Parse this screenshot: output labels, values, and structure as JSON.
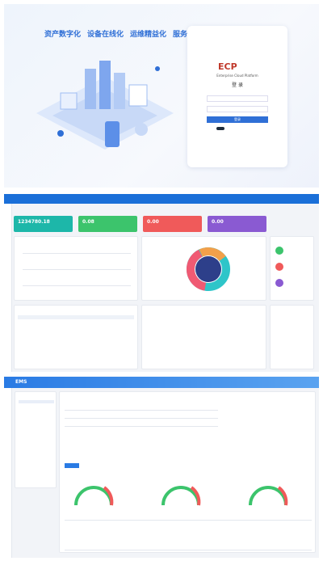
{
  "login": {
    "slogans": [
      "资产数字化",
      "设备在线化",
      "运维精益化",
      "服务智能化"
    ],
    "logo": "ECP",
    "platform": "Enterprise Cloud Platform",
    "title": "登 录",
    "button": "登录"
  },
  "dashboard": {
    "cards": [
      "1234780.18",
      "0.08",
      "0.00",
      "0.00"
    ]
  },
  "ems": {
    "logo": "EMS"
  }
}
